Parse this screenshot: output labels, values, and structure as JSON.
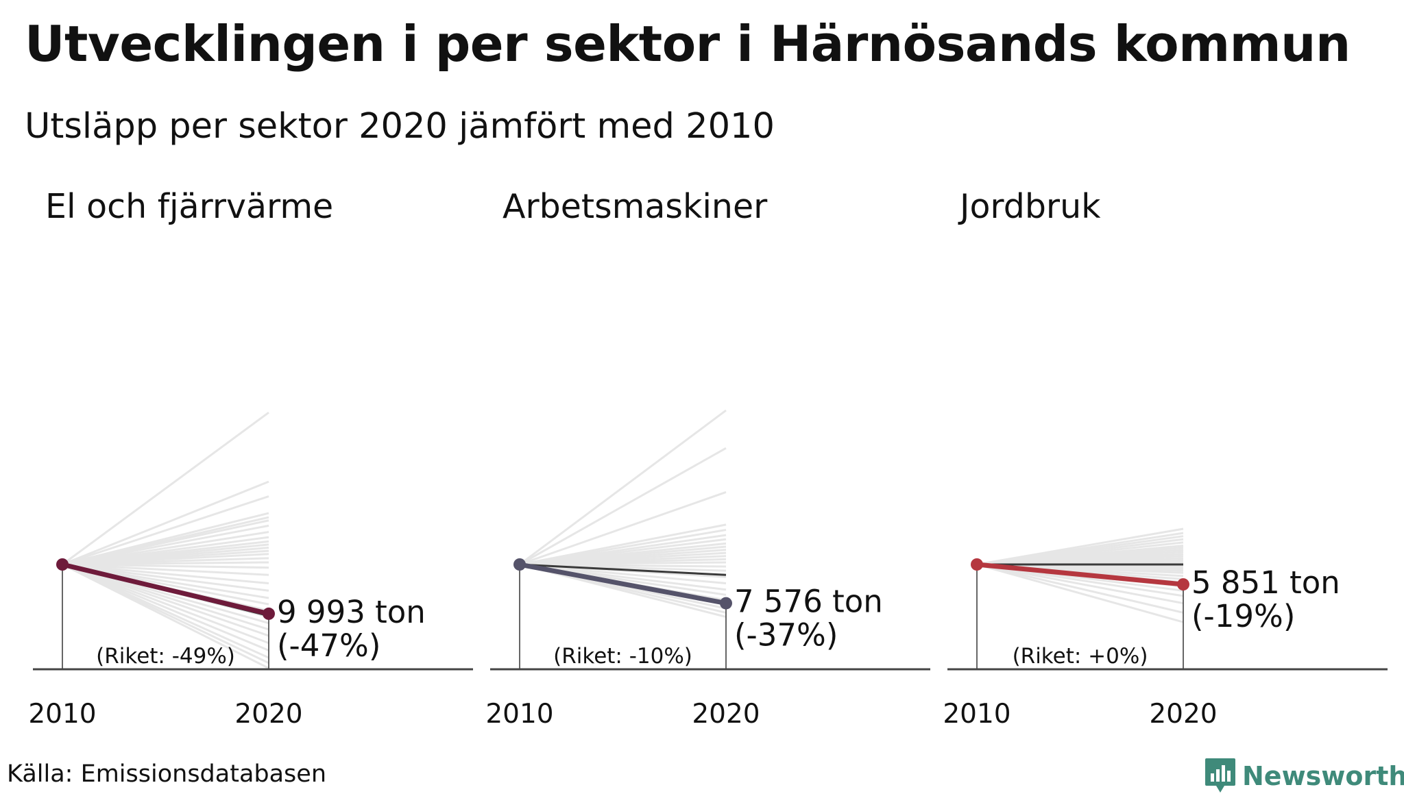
{
  "title": "Utvecklingen i per sektor i Härnösands kommun",
  "subtitle": "Utsläpp per sektor 2020 jämfört med 2010",
  "source": "Källa: Emissionsdatabasen",
  "brand": {
    "name": "Newsworthy",
    "color": "#3f8a7a",
    "icon": "bar-chart-speech-bubble-icon"
  },
  "chart_data": [
    {
      "type": "line",
      "title": "El och fjärrvärme",
      "x": [
        "2010",
        "2020"
      ],
      "highlight": {
        "change_pct": -47,
        "value_label": "9 993 ton",
        "change_label": "(-47%)",
        "color": "#6e1b3b"
      },
      "national": {
        "change_pct": -49,
        "label": "(Riket: -49%)",
        "color": "#3a3a3a"
      },
      "comparison_series_change_pct": [
        145,
        79,
        65,
        49,
        45,
        42,
        37,
        31,
        26,
        22,
        19,
        16,
        13,
        10,
        6,
        2,
        -3,
        -10,
        -18,
        -25,
        -32,
        -38,
        -44,
        -50,
        -56,
        -62,
        -68,
        -75,
        -82,
        -89,
        -94,
        -99
      ],
      "comparison_color": "#e6e6e6"
    },
    {
      "type": "line",
      "title": "Arbetsmaskiner",
      "x": [
        "2010",
        "2020"
      ],
      "highlight": {
        "change_pct": -37,
        "value_label": "7 576 ton",
        "change_label": "(-37%)",
        "color": "#55536a"
      },
      "national": {
        "change_pct": -10,
        "label": "(Riket: -10%)",
        "color": "#3a3a3a"
      },
      "comparison_series_change_pct": [
        147,
        111,
        69,
        38,
        33,
        28,
        24,
        20,
        17,
        14,
        11,
        8,
        5,
        2,
        -2,
        -6,
        -12,
        -18,
        -24,
        -29,
        -34,
        -38,
        -42,
        -46,
        -50
      ],
      "comparison_color": "#e6e6e6"
    },
    {
      "type": "line",
      "title": "Jordbruk",
      "x": [
        "2010",
        "2020"
      ],
      "highlight": {
        "change_pct": -19,
        "value_label": "5 851 ton",
        "change_label": "(-19%)",
        "color": "#b5373f"
      },
      "national": {
        "change_pct": 0,
        "label": "(Riket: +0%)",
        "color": "#3a3a3a"
      },
      "comparison_series_change_pct": [
        34,
        30,
        27,
        24,
        21,
        18,
        16,
        14,
        12,
        10,
        8,
        6,
        4,
        2,
        0,
        -2,
        -4,
        -6,
        -8,
        -11,
        -14,
        -17,
        -21,
        -25,
        -30,
        -37,
        -46,
        -55
      ],
      "comparison_color": "#e6e6e6"
    }
  ]
}
